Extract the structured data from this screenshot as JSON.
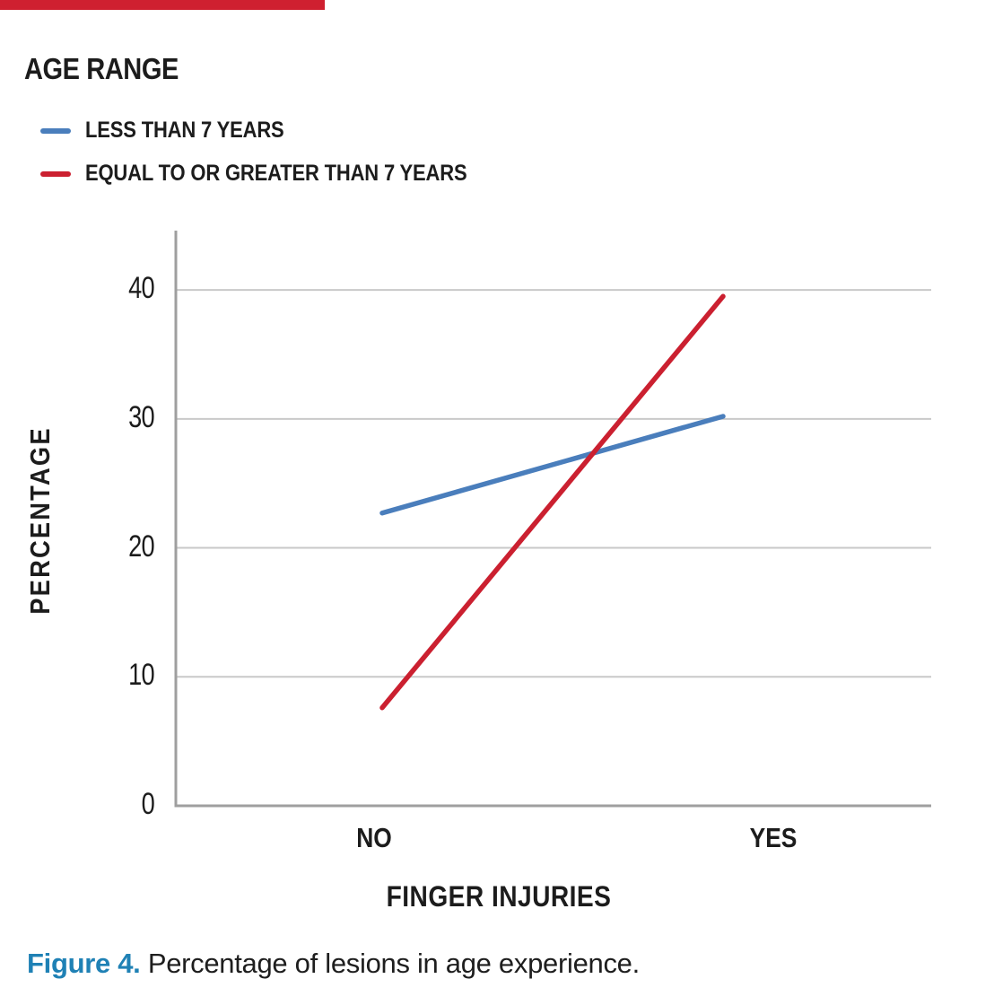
{
  "figure": {
    "top_bar_color": "#cf2030",
    "caption": {
      "label": "Figure 4.",
      "label_color": "#1f81b5",
      "text": " Percentage of lesions in age experience."
    }
  },
  "chart_data": {
    "type": "line",
    "legend_title": "AGE RANGE",
    "categories": [
      "NO",
      "YES"
    ],
    "series": [
      {
        "name": "LESS THAN 7 YEARS",
        "color": "#4a7ebc",
        "values": [
          22.7,
          30.2
        ]
      },
      {
        "name": "EQUAL TO OR GREATER THAN 7 YEARS",
        "color": "#cb2030",
        "values": [
          7.6,
          39.5
        ]
      }
    ],
    "xlabel": "FINGER INJURIES",
    "ylabel": "PERCENTAGE",
    "yticks": [
      0,
      10,
      20,
      30,
      40
    ],
    "ylim": [
      0,
      44.6
    ],
    "grid": "horizontal",
    "legend_position": "top-left",
    "colors": {
      "gridline": "#c9c9c9",
      "axis": "#9f9f9f",
      "text": "#1c1c1c"
    }
  }
}
